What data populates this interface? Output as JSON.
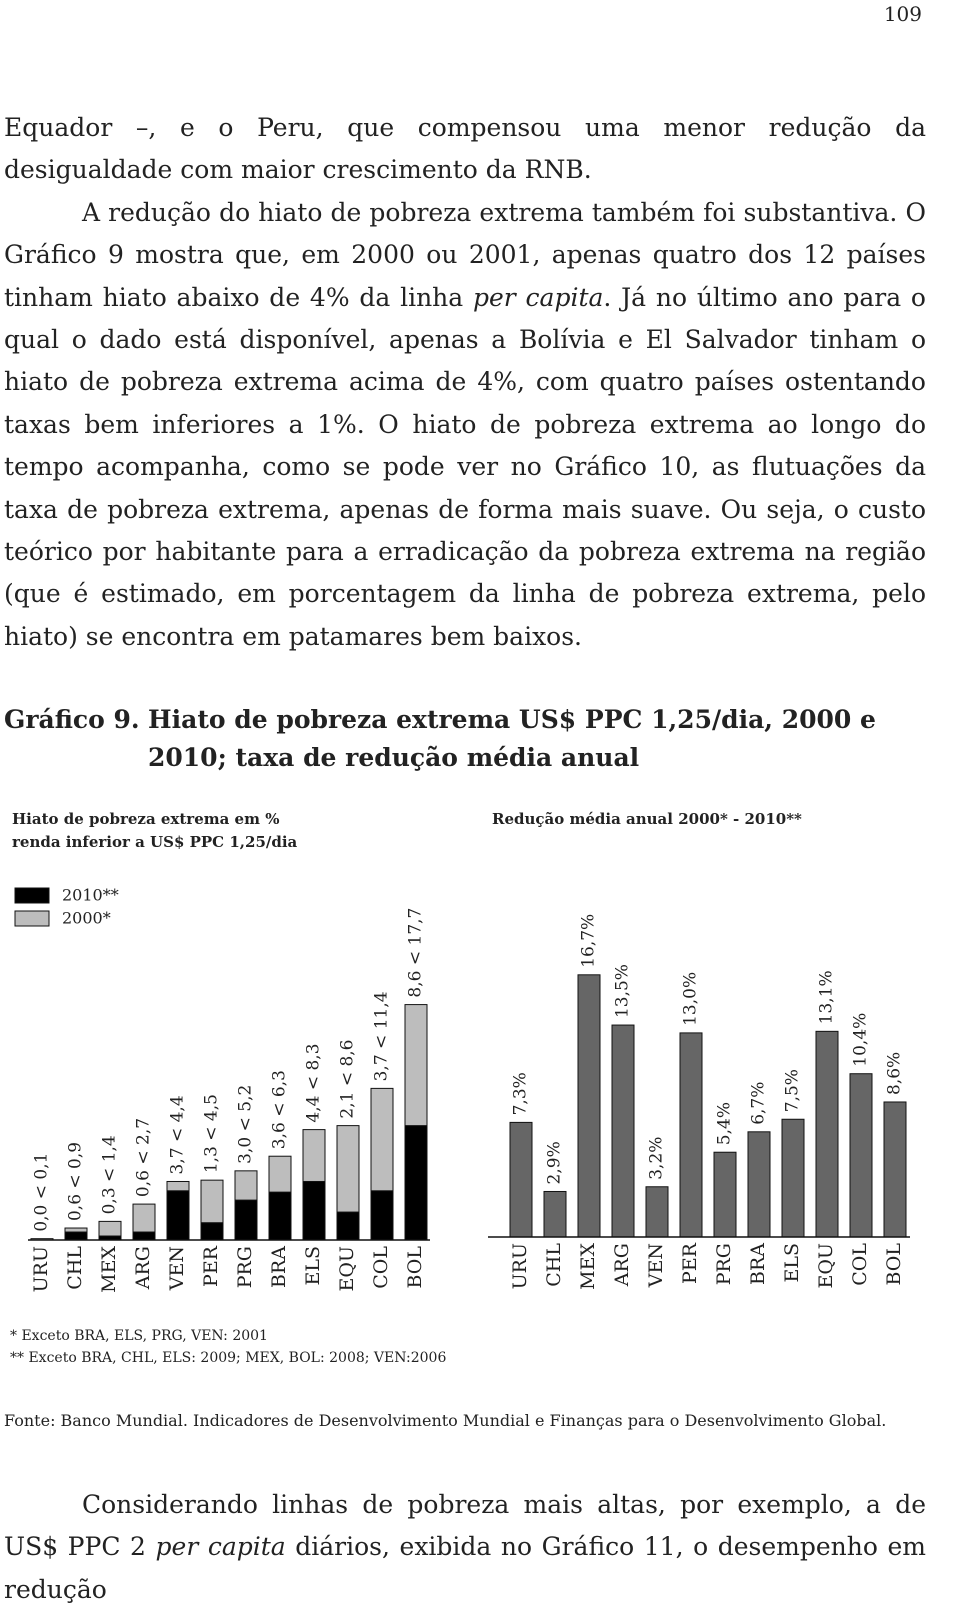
{
  "page_number": "109",
  "paragraphs": [
    {
      "runs": [
        "Equador –, e o Peru, que compensou uma menor redução da desigualdade com maior crescimento da RNB."
      ]
    },
    {
      "runs": [
        "A redução do hiato de pobreza extrema também foi substantiva. O Gráfico 9 mostra que, em 2000 ou 2001, apenas quatro dos 12 países tinham hiato abaixo de 4% da linha ",
        "per capita",
        ". Já no último ano para o qual o dado está disponível, apenas a Bolívia e El Salvador tinham o hiato de pobreza extrema acima de 4%, com quatro países ostentando taxas bem inferiores a 1%. O hiato de pobreza extrema ao longo do tempo acompanha, como se pode ver no Gráfico 10, as flutuações da taxa de pobreza extrema, apenas de forma mais suave. Ou seja, o custo teórico por habitante para a erradicação da pobreza extrema na região (que é estimado, em porcentagem da linha de pobreza extrema, pelo hiato) se encontra em patamares bem baixos."
      ]
    }
  ],
  "figure": {
    "label": "Gráfico 9.",
    "title": "Hiato de pobreza extrema US$ PPC 1,25/dia, 2000 e 2010; taxa de redução média anual"
  },
  "chart_data": [
    {
      "type": "bar",
      "title": [
        "Hiato de pobreza extrema em %",
        "renda inferior a US$ PPC 1,25/dia"
      ],
      "categories": [
        "URU",
        "CHL",
        "MEX",
        "ARG",
        "VEN",
        "PER",
        "PRG",
        "BRA",
        "ELS",
        "EQU",
        "COL",
        "BOL"
      ],
      "series": [
        {
          "name": "2010**",
          "color": "#000000",
          "values": [
            0.0,
            0.6,
            0.3,
            0.6,
            3.7,
            1.3,
            3.0,
            3.6,
            4.4,
            2.1,
            3.7,
            8.6
          ]
        },
        {
          "name": "2000*",
          "color": "#bdbdbd",
          "values": [
            0.1,
            0.9,
            1.4,
            2.7,
            4.4,
            4.5,
            5.2,
            6.3,
            8.3,
            8.6,
            11.4,
            17.7
          ],
          "value_labels": [
            "0,0 < 0,1",
            "0,6  < 0,9",
            "0,3  < 1,4",
            "0,6 < 2,7",
            "3,7 < 4,4",
            "1,3 < 4,5",
            "3,0 < 5,2",
            "3,6 < 6,3",
            "4,4 < 8,3",
            "2,1 < 8,6",
            "3,7 < 11,4",
            "8,6 < 17,7"
          ]
        }
      ]
    },
    {
      "type": "bar",
      "title": "Redução média anual 2000* - 2010**",
      "categories": [
        "URU",
        "CHL",
        "MEX",
        "ARG",
        "VEN",
        "PER",
        "PRG",
        "BRA",
        "ELS",
        "EQU",
        "COL",
        "BOL"
      ],
      "color": "#666666",
      "values": [
        7.3,
        2.9,
        16.7,
        13.5,
        3.2,
        13.0,
        5.4,
        6.7,
        7.5,
        13.1,
        10.4,
        8.6
      ],
      "value_labels": [
        "7,3%",
        "2,9%",
        "16,7%",
        "13,5%",
        "3,2%",
        "13,0%",
        "5,4%",
        "6,7%",
        "7,5%",
        "13,1%",
        "10,4%",
        "8,6%"
      ]
    }
  ],
  "footnotes": [
    "* Exceto BRA, ELS, PRG, VEN: 2001",
    "** Exceto BRA, CHL, ELS: 2009; MEX, BOL: 2008; VEN:2006"
  ],
  "source": "Fonte: Banco Mundial. Indicadores de Desenvolvimento Mundial e Finanças para o Desenvolvimento Global.",
  "closing_paragraph": {
    "runs": [
      "Considerando linhas de pobreza mais altas, por exemplo, a de US$ PPC 2 ",
      "per capita",
      " diários, exibida no Gráfico 11, o desempenho em redução"
    ]
  }
}
